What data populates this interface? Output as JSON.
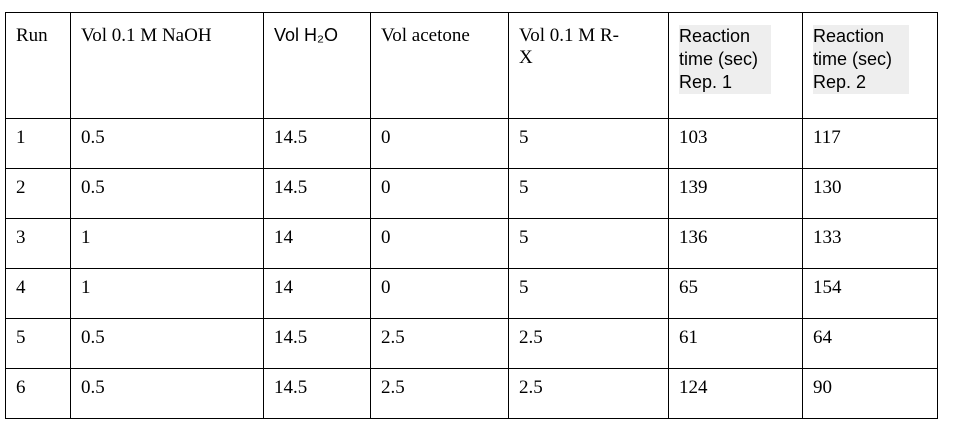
{
  "table": {
    "header": [
      "Run",
      "Vol 0.1 M NaOH",
      "Vol H₂O",
      "Vol acetone",
      "Vol 0.1 M R-X",
      "Reaction time (sec) Rep. 1",
      "Reaction time (sec) Rep. 2"
    ],
    "rows": [
      [
        1,
        0.5,
        14.5,
        0,
        5,
        103,
        117
      ],
      [
        2,
        0.5,
        14.5,
        0,
        5,
        139,
        130
      ],
      [
        3,
        1,
        14,
        0,
        5,
        136,
        133
      ],
      [
        4,
        1,
        14,
        0,
        5,
        65,
        154
      ],
      [
        5,
        0.5,
        14.5,
        2.5,
        2.5,
        61,
        64
      ],
      [
        6,
        0.5,
        14.5,
        2.5,
        2.5,
        124,
        90
      ]
    ]
  }
}
